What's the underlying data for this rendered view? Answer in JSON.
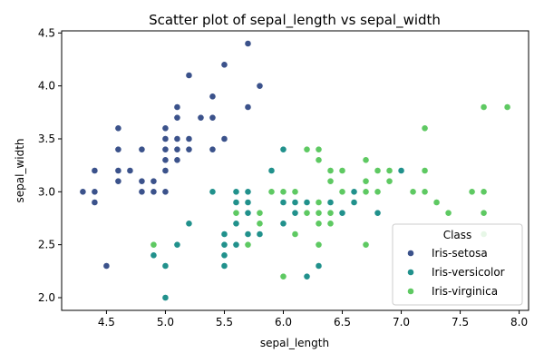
{
  "chart_data": {
    "type": "scatter",
    "title": "Scatter plot of sepal_length vs sepal_width",
    "xlabel": "sepal_length",
    "ylabel": "sepal_width",
    "xlim": [
      4.12,
      8.08
    ],
    "ylim": [
      1.88,
      4.52
    ],
    "xticks": [
      "4.5",
      "5.0",
      "5.5",
      "6.0",
      "6.5",
      "7.0",
      "7.5",
      "8.0"
    ],
    "yticks": [
      "2.0",
      "2.5",
      "3.0",
      "3.5",
      "4.0",
      "4.5"
    ],
    "grid": false,
    "legend": {
      "title": "Class",
      "placement": "lower-right"
    },
    "series": [
      {
        "name": "Iris-setosa",
        "color": "#3b528b",
        "points": [
          [
            5.1,
            3.5
          ],
          [
            4.9,
            3.0
          ],
          [
            4.7,
            3.2
          ],
          [
            4.6,
            3.1
          ],
          [
            5.0,
            3.6
          ],
          [
            5.4,
            3.9
          ],
          [
            4.6,
            3.4
          ],
          [
            5.0,
            3.4
          ],
          [
            4.4,
            2.9
          ],
          [
            4.9,
            3.1
          ],
          [
            5.4,
            3.7
          ],
          [
            4.8,
            3.4
          ],
          [
            4.8,
            3.0
          ],
          [
            4.3,
            3.0
          ],
          [
            5.8,
            4.0
          ],
          [
            5.7,
            4.4
          ],
          [
            5.4,
            3.9
          ],
          [
            5.1,
            3.5
          ],
          [
            5.7,
            3.8
          ],
          [
            5.1,
            3.8
          ],
          [
            5.4,
            3.4
          ],
          [
            5.1,
            3.7
          ],
          [
            4.6,
            3.6
          ],
          [
            5.1,
            3.3
          ],
          [
            4.8,
            3.4
          ],
          [
            5.0,
            3.0
          ],
          [
            5.0,
            3.4
          ],
          [
            5.2,
            3.5
          ],
          [
            5.2,
            3.4
          ],
          [
            4.7,
            3.2
          ],
          [
            4.8,
            3.1
          ],
          [
            5.4,
            3.4
          ],
          [
            5.2,
            4.1
          ],
          [
            5.5,
            4.2
          ],
          [
            4.9,
            3.1
          ],
          [
            5.0,
            3.2
          ],
          [
            5.5,
            3.5
          ],
          [
            4.9,
            3.1
          ],
          [
            4.4,
            3.0
          ],
          [
            5.1,
            3.4
          ],
          [
            5.0,
            3.5
          ],
          [
            4.5,
            2.3
          ],
          [
            4.4,
            3.2
          ],
          [
            5.0,
            3.5
          ],
          [
            5.1,
            3.8
          ],
          [
            4.8,
            3.0
          ],
          [
            5.1,
            3.8
          ],
          [
            4.6,
            3.2
          ],
          [
            5.3,
            3.7
          ],
          [
            5.0,
            3.3
          ]
        ]
      },
      {
        "name": "Iris-versicolor",
        "color": "#21918c",
        "points": [
          [
            7.0,
            3.2
          ],
          [
            6.4,
            3.2
          ],
          [
            6.9,
            3.1
          ],
          [
            5.5,
            2.3
          ],
          [
            6.5,
            2.8
          ],
          [
            5.7,
            2.8
          ],
          [
            6.3,
            3.3
          ],
          [
            4.9,
            2.4
          ],
          [
            6.6,
            2.9
          ],
          [
            5.2,
            2.7
          ],
          [
            5.0,
            2.0
          ],
          [
            5.9,
            3.0
          ],
          [
            6.0,
            2.2
          ],
          [
            6.1,
            2.9
          ],
          [
            5.6,
            2.9
          ],
          [
            6.7,
            3.1
          ],
          [
            5.6,
            3.0
          ],
          [
            5.8,
            2.7
          ],
          [
            6.2,
            2.2
          ],
          [
            5.6,
            2.5
          ],
          [
            5.9,
            3.2
          ],
          [
            6.1,
            2.8
          ],
          [
            6.3,
            2.5
          ],
          [
            6.1,
            2.8
          ],
          [
            6.4,
            2.9
          ],
          [
            6.6,
            3.0
          ],
          [
            6.8,
            2.8
          ],
          [
            6.7,
            3.0
          ],
          [
            6.0,
            2.9
          ],
          [
            5.7,
            2.6
          ],
          [
            5.5,
            2.4
          ],
          [
            5.5,
            2.4
          ],
          [
            5.8,
            2.7
          ],
          [
            6.0,
            2.7
          ],
          [
            5.4,
            3.0
          ],
          [
            6.0,
            3.4
          ],
          [
            6.7,
            3.1
          ],
          [
            6.3,
            2.3
          ],
          [
            5.6,
            3.0
          ],
          [
            5.5,
            2.5
          ],
          [
            5.5,
            2.6
          ],
          [
            6.1,
            3.0
          ],
          [
            5.8,
            2.6
          ],
          [
            5.0,
            2.3
          ],
          [
            5.6,
            2.7
          ],
          [
            5.7,
            3.0
          ],
          [
            5.7,
            2.9
          ],
          [
            6.2,
            2.9
          ],
          [
            5.1,
            2.5
          ],
          [
            5.7,
            2.8
          ]
        ]
      },
      {
        "name": "Iris-virginica",
        "color": "#5ec962",
        "points": [
          [
            6.3,
            3.3
          ],
          [
            5.8,
            2.7
          ],
          [
            7.1,
            3.0
          ],
          [
            6.3,
            2.9
          ],
          [
            6.5,
            3.0
          ],
          [
            7.6,
            3.0
          ],
          [
            4.9,
            2.5
          ],
          [
            7.3,
            2.9
          ],
          [
            6.7,
            2.5
          ],
          [
            7.2,
            3.6
          ],
          [
            6.5,
            3.2
          ],
          [
            6.4,
            2.7
          ],
          [
            6.8,
            3.0
          ],
          [
            5.7,
            2.5
          ],
          [
            5.8,
            2.8
          ],
          [
            6.4,
            3.2
          ],
          [
            6.5,
            3.0
          ],
          [
            7.7,
            3.8
          ],
          [
            7.7,
            2.6
          ],
          [
            6.0,
            2.2
          ],
          [
            6.9,
            3.2
          ],
          [
            5.6,
            2.8
          ],
          [
            7.7,
            2.8
          ],
          [
            6.3,
            2.7
          ],
          [
            6.7,
            3.3
          ],
          [
            7.2,
            3.2
          ],
          [
            6.2,
            2.8
          ],
          [
            6.1,
            3.0
          ],
          [
            6.4,
            2.8
          ],
          [
            7.2,
            3.0
          ],
          [
            7.4,
            2.8
          ],
          [
            7.9,
            3.8
          ],
          [
            6.4,
            2.8
          ],
          [
            6.3,
            2.8
          ],
          [
            6.1,
            2.6
          ],
          [
            7.7,
            3.0
          ],
          [
            6.3,
            3.4
          ],
          [
            6.4,
            3.1
          ],
          [
            6.0,
            3.0
          ],
          [
            6.9,
            3.1
          ],
          [
            6.7,
            3.1
          ],
          [
            6.9,
            3.1
          ],
          [
            5.8,
            2.7
          ],
          [
            6.8,
            3.2
          ],
          [
            6.7,
            3.3
          ],
          [
            6.7,
            3.0
          ],
          [
            6.3,
            2.5
          ],
          [
            6.5,
            3.0
          ],
          [
            6.2,
            3.4
          ],
          [
            5.9,
            3.0
          ]
        ]
      }
    ]
  }
}
